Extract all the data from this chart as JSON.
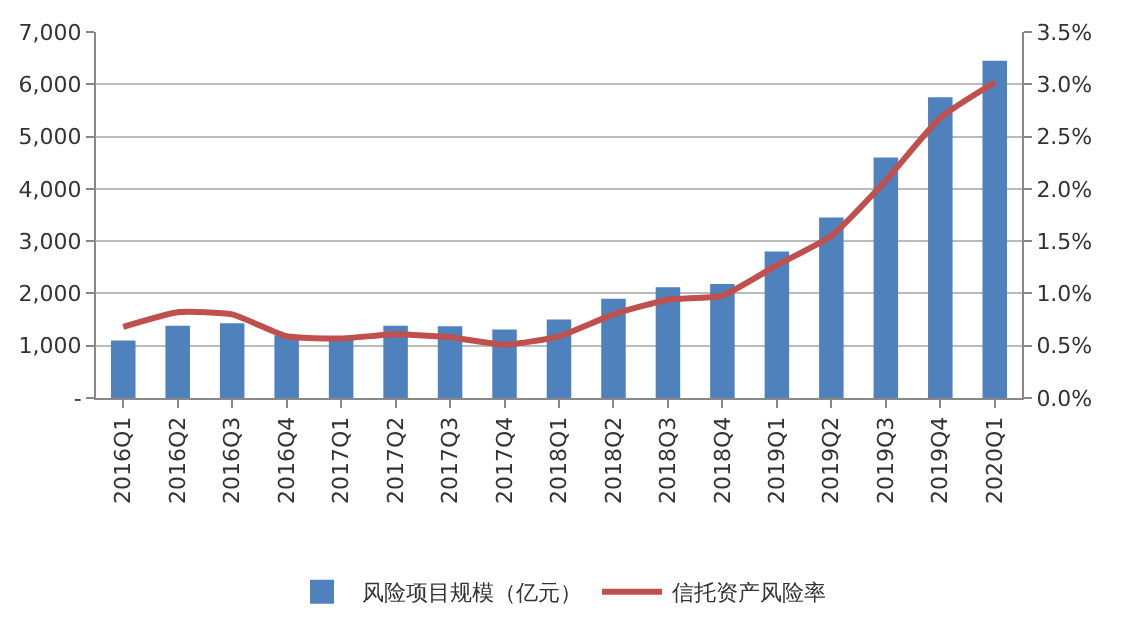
{
  "chart_data": {
    "type": "bar",
    "categories": [
      "2016Q1",
      "2016Q2",
      "2016Q3",
      "2016Q4",
      "2017Q1",
      "2017Q2",
      "2017Q3",
      "2017Q4",
      "2018Q1",
      "2018Q2",
      "2018Q3",
      "2018Q4",
      "2019Q1",
      "2019Q2",
      "2019Q3",
      "2019Q4",
      "2020Q1"
    ],
    "series": [
      {
        "name": "风险项目规模（亿元）",
        "color": "#4f81bd",
        "values": [
          1100,
          1380,
          1430,
          1200,
          1180,
          1380,
          1370,
          1310,
          1500,
          1900,
          2120,
          2180,
          2800,
          3450,
          4600,
          5750,
          6450
        ]
      },
      {
        "name": "信托资产风险率",
        "type": "line",
        "axis": "y2",
        "color": "#c0504d",
        "values": [
          0.68,
          0.82,
          0.8,
          0.59,
          0.57,
          0.61,
          0.58,
          0.51,
          0.59,
          0.8,
          0.94,
          0.98,
          1.27,
          1.55,
          2.08,
          2.68,
          3.02
        ]
      }
    ],
    "ylim": [
      0,
      7000
    ],
    "yticks": [
      {
        "value": 0,
        "label": "-"
      },
      {
        "value": 1000,
        "label": "1,000"
      },
      {
        "value": 2000,
        "label": "2,000"
      },
      {
        "value": 3000,
        "label": "3,000"
      },
      {
        "value": 4000,
        "label": "4,000"
      },
      {
        "value": 5000,
        "label": "5,000"
      },
      {
        "value": 6000,
        "label": "6,000"
      },
      {
        "value": 7000,
        "label": "7,000"
      }
    ],
    "y2lim": [
      0,
      3.5
    ],
    "y2ticks": [
      {
        "value": 0,
        "label": "0.0%"
      },
      {
        "value": 0.5,
        "label": "0.5%"
      },
      {
        "value": 1,
        "label": "1.0%"
      },
      {
        "value": 1.5,
        "label": "1.5%"
      },
      {
        "value": 2,
        "label": "2.0%"
      },
      {
        "value": 2.5,
        "label": "2.5%"
      },
      {
        "value": 3,
        "label": "3.0%"
      },
      {
        "value": 3.5,
        "label": "3.5%"
      }
    ],
    "grid": "y",
    "legend": "bottom",
    "marker": "none",
    "line_style": "solid"
  }
}
